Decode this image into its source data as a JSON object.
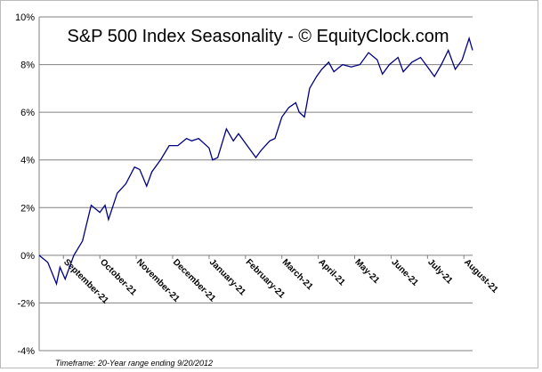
{
  "chart_data": {
    "type": "line",
    "title": "S&P 500 Index Seasonality - © EquityClock.com",
    "footnote": "Timeframe: 20-Year range ending 9/20/2012",
    "x": [
      0,
      5,
      10,
      12,
      15,
      20,
      25,
      28,
      30,
      35,
      38,
      40,
      45,
      50,
      55,
      58,
      62,
      65,
      70,
      75,
      80,
      85,
      88,
      92,
      98,
      100,
      103,
      108,
      112,
      115,
      120,
      125,
      128,
      133,
      136,
      140,
      144,
      148,
      150,
      153,
      156,
      160,
      163,
      167,
      170,
      175,
      180,
      185,
      190,
      195,
      198,
      202,
      207,
      210,
      215,
      220,
      225,
      228,
      232,
      236,
      240,
      244,
      248,
      250
    ],
    "series": [
      {
        "name": "S&P 500",
        "color": "#000080",
        "values": [
          0,
          -0.3,
          -1.2,
          -0.5,
          -1.0,
          0,
          0.6,
          1.5,
          2.1,
          1.8,
          2.1,
          1.5,
          2.6,
          3.0,
          3.7,
          3.6,
          2.9,
          3.5,
          4.0,
          4.6,
          4.6,
          4.9,
          4.8,
          4.9,
          4.5,
          4.0,
          4.1,
          5.3,
          4.8,
          5.1,
          4.6,
          4.1,
          4.4,
          4.8,
          4.9,
          5.8,
          6.2,
          6.4,
          6.0,
          5.8,
          7.0,
          7.5,
          7.8,
          8.1,
          7.7,
          8.0,
          7.9,
          8.0,
          8.5,
          8.2,
          7.6,
          8.0,
          8.3,
          7.7,
          8.1,
          8.3,
          7.8,
          7.5,
          8.0,
          8.6,
          7.8,
          8.2,
          9.1,
          8.6
        ]
      }
    ],
    "xlim": [
      0,
      250
    ],
    "xticks": [
      {
        "value": 14,
        "label": "September-21"
      },
      {
        "value": 35,
        "label": "October-21"
      },
      {
        "value": 56,
        "label": "November-21"
      },
      {
        "value": 77,
        "label": "December-21"
      },
      {
        "value": 98,
        "label": "January-21"
      },
      {
        "value": 119,
        "label": "February-21"
      },
      {
        "value": 140,
        "label": "March-21"
      },
      {
        "value": 161,
        "label": "April-21"
      },
      {
        "value": 182,
        "label": "May-21"
      },
      {
        "value": 203,
        "label": "June-21"
      },
      {
        "value": 224,
        "label": "July-21"
      },
      {
        "value": 245,
        "label": "August-21"
      }
    ],
    "ylim": [
      -4,
      10
    ],
    "yticks": [
      {
        "value": -4,
        "label": "-4%"
      },
      {
        "value": -2,
        "label": "-2%"
      },
      {
        "value": 0,
        "label": "0%"
      },
      {
        "value": 2,
        "label": "2%"
      },
      {
        "value": 4,
        "label": "4%"
      },
      {
        "value": 6,
        "label": "6%"
      },
      {
        "value": 8,
        "label": "8%"
      },
      {
        "value": 10,
        "label": "10%"
      }
    ],
    "grid": true
  }
}
